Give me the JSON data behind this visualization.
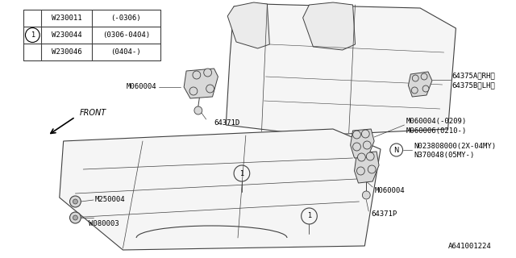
{
  "bg_color": "#ffffff",
  "diagram_id": "A641001224",
  "table_rows": [
    {
      "part": "W230011",
      "note": "(-0306)",
      "circled": false
    },
    {
      "part": "W230044",
      "note": "(0306-0404)",
      "circled": true
    },
    {
      "part": "W230046",
      "note": "(0404-)",
      "circled": false
    }
  ],
  "line_color": "#404040",
  "seat_fill": "#f5f5f5",
  "hardware_fill": "#d8d8d8"
}
